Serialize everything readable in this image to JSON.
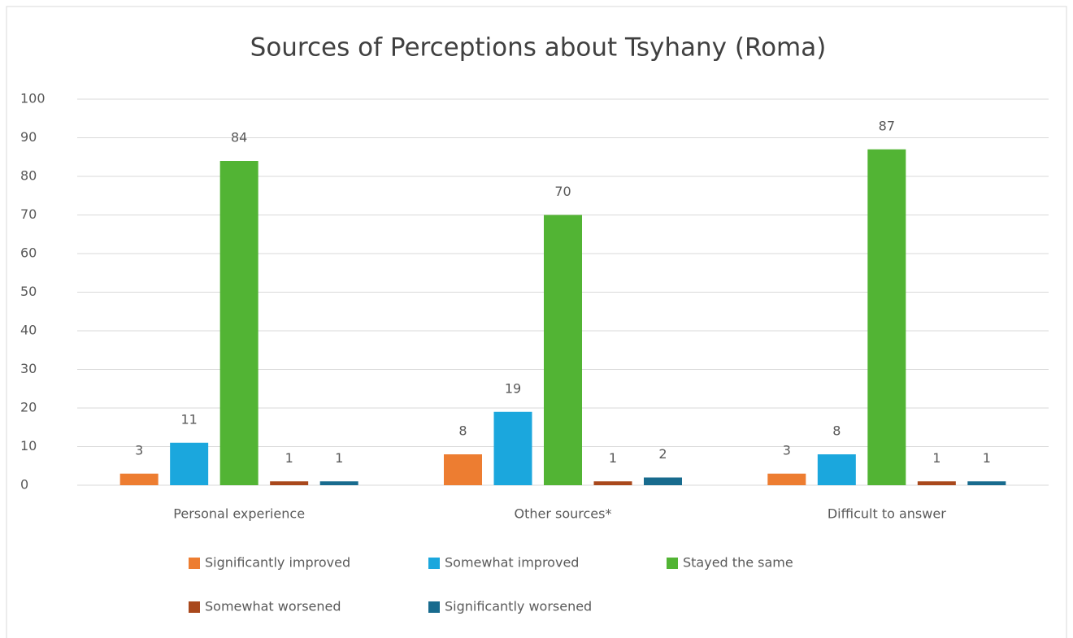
{
  "chart_data": {
    "type": "bar",
    "title": "Sources of Perceptions about Tsyhany (Roma)",
    "categories": [
      "Personal experience",
      "Other sources*",
      "Difficult to answer"
    ],
    "series": [
      {
        "name": "Significantly improved",
        "color": "#ed7d31",
        "values": [
          3,
          8,
          3
        ]
      },
      {
        "name": "Somewhat improved",
        "color": "#1ba7dd",
        "values": [
          11,
          19,
          8
        ]
      },
      {
        "name": "Stayed the same",
        "color": "#52b434",
        "values": [
          84,
          70,
          87
        ]
      },
      {
        "name": "Somewhat worsened",
        "color": "#a9481c",
        "values": [
          1,
          1,
          1
        ]
      },
      {
        "name": "Significantly worsened",
        "color": "#186b8e",
        "values": [
          1,
          2,
          1
        ]
      }
    ],
    "ylim": [
      0,
      100
    ],
    "yticks": [
      0,
      10,
      20,
      30,
      40,
      50,
      60,
      70,
      80,
      90,
      100
    ],
    "grid": true
  }
}
